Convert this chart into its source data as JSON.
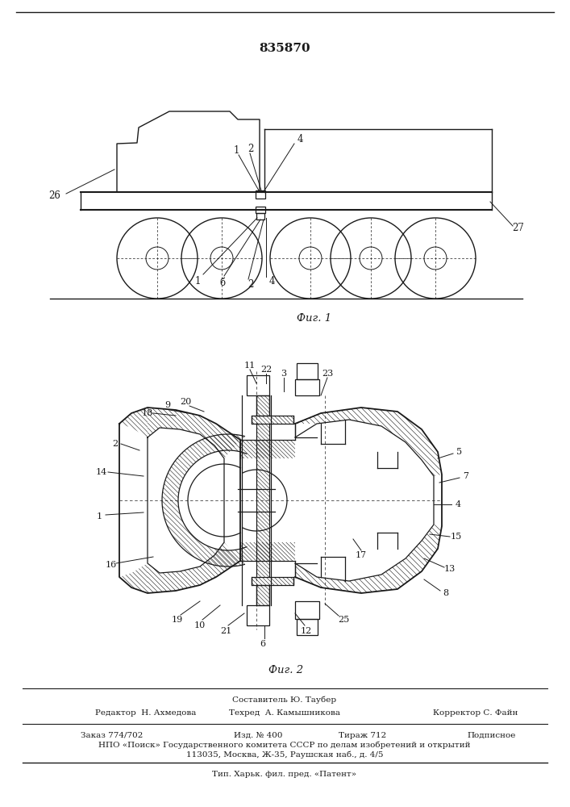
{
  "patent_number": "835870",
  "fig1_caption": "Фиг. 1",
  "fig2_caption": "Фиг. 2",
  "sestavitel": "Составитель Ю. Таубер",
  "editor": "Редактор  Н. Ахмедова",
  "tehred": "Техред  А. Камышникова",
  "korrektor": "Корректор С. Файн",
  "zakaz": "Заказ 774/702",
  "izd": "Изд. № 400",
  "tirazh": "Тираж 712",
  "podpisnoe": "Подписное",
  "npo_line": "НПО «Поиск» Государственного комитета СССР по делам изобретений и открытий",
  "address_line": "113035, Москва, Ж-35, Раушская наб., д. 4/5",
  "tip_line": "Тип. Харьк. фил. пред. «Патент»",
  "bg_color": "#ffffff",
  "lc": "#1a1a1a"
}
